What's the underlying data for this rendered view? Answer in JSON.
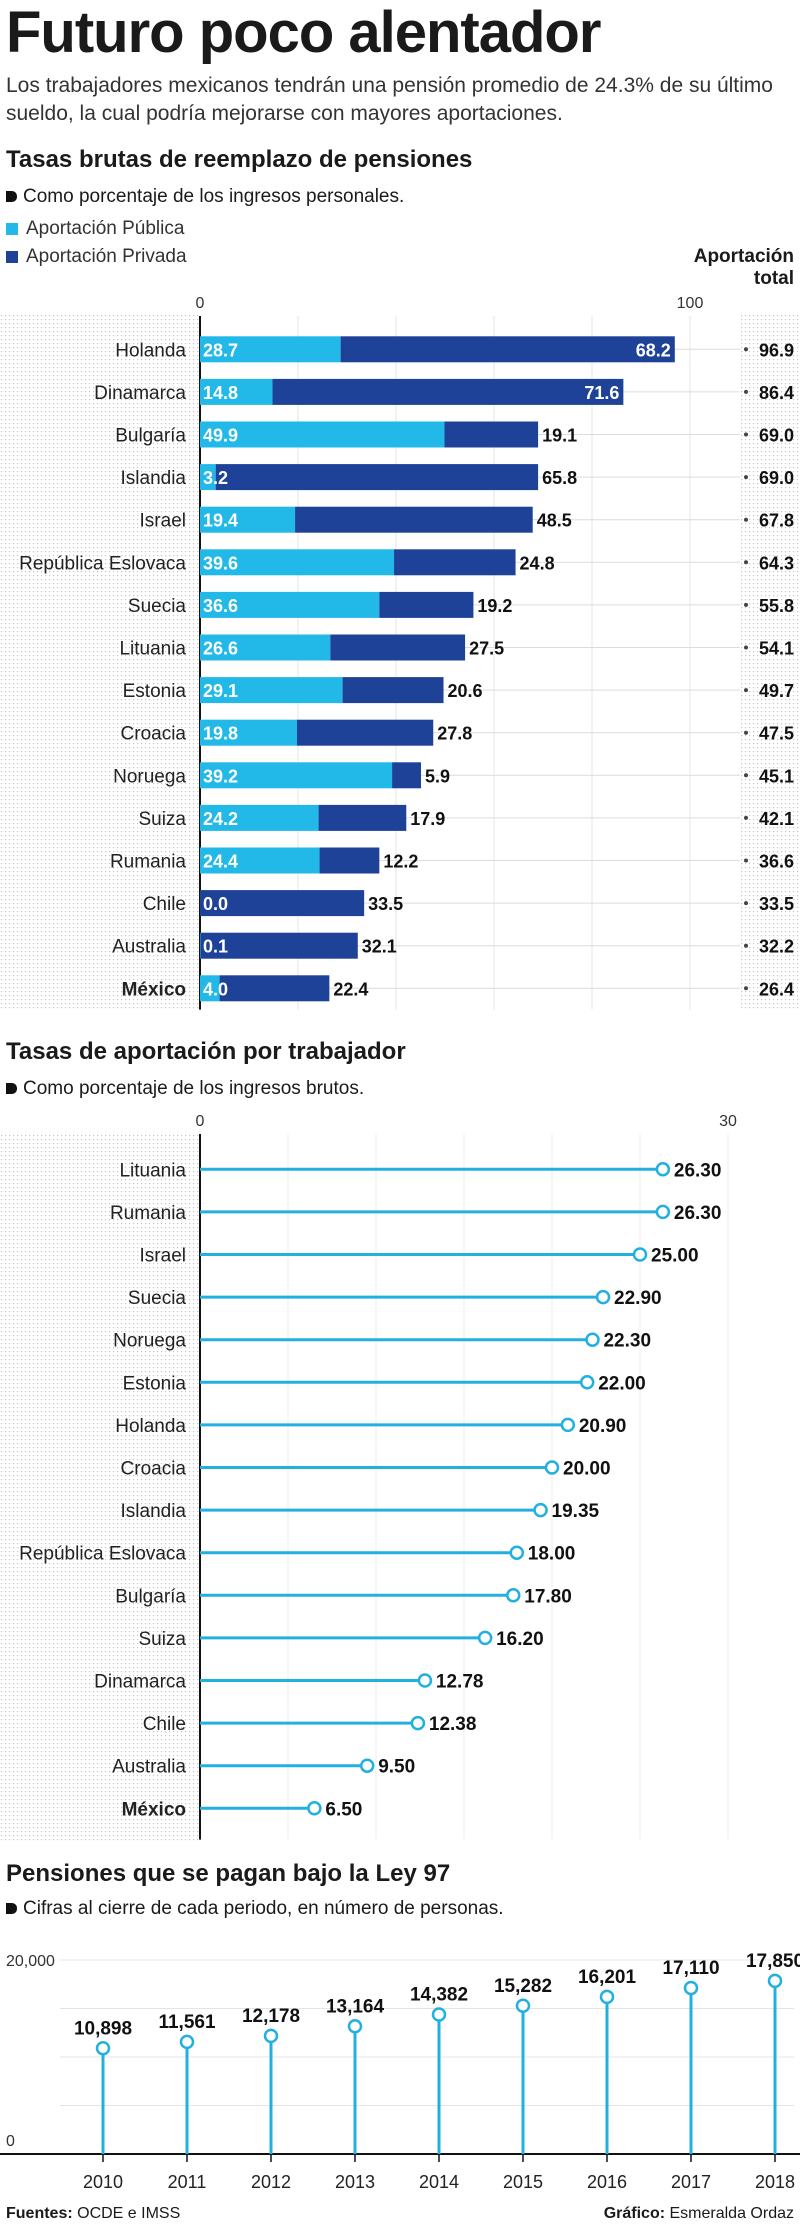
{
  "title": "Futuro poco alentador",
  "subtitle": "Los trabajadores mexicanos tendrán una pensión promedio de 24.3% de su último sueldo, la cual podría mejorarse con mayores aportaciones.",
  "chart1": {
    "heading": "Tasas brutas de reemplazo de pensiones",
    "note": "Como porcentaje de los ingresos personales.",
    "legend_public": "Aportación Pública",
    "legend_private": "Aportación Privada",
    "total_head_1": "Aportación",
    "total_head_2": "total"
  },
  "chart2": {
    "heading": "Tasas de aportación por trabajador",
    "note": "Como porcentaje de los ingresos brutos."
  },
  "chart3": {
    "heading": "Pensiones que se pagan bajo la Ley 97",
    "note": "Cifras al cierre de cada periodo, en número de personas."
  },
  "footer": {
    "sources_label": "Fuentes:",
    "sources": "OCDE e IMSS",
    "graphic_label": "Gráfico:",
    "graphic": "Esmeralda Ordaz"
  },
  "colors": {
    "public": "#22b8e8",
    "private": "#1f4299",
    "lollipop": "#22b0e0"
  },
  "chart_data": [
    {
      "type": "bar",
      "title": "Tasas brutas de reemplazo de pensiones",
      "categories": [
        "Holanda",
        "Dinamarca",
        "Bulgaría",
        "Islandia",
        "Israel",
        "República Eslovaca",
        "Suecia",
        "Lituania",
        "Estonia",
        "Croacia",
        "Noruega",
        "Suiza",
        "Rumania",
        "Chile",
        "Australia",
        "México"
      ],
      "series": [
        {
          "name": "Aportación Pública",
          "values": [
            28.7,
            14.8,
            49.9,
            3.2,
            19.4,
            39.6,
            36.6,
            26.6,
            29.1,
            19.8,
            39.2,
            24.2,
            24.4,
            0.0,
            0.1,
            4.0
          ]
        },
        {
          "name": "Aportación Privada",
          "values": [
            68.2,
            71.6,
            19.1,
            65.8,
            48.5,
            24.8,
            19.2,
            27.5,
            20.6,
            27.8,
            5.9,
            17.9,
            12.2,
            33.5,
            32.1,
            22.4
          ]
        }
      ],
      "totals": [
        "96.9",
        "86.4",
        "69.0",
        "69.0",
        "67.8",
        "64.3",
        "55.8",
        "54.1",
        "49.7",
        "47.5",
        "45.1",
        "42.1",
        "36.6",
        "33.5",
        "32.2",
        "26.4"
      ],
      "stacked": true,
      "orientation": "horizontal",
      "xlim": [
        0,
        100
      ],
      "xticks": [
        "0",
        "100"
      ]
    },
    {
      "type": "scatter",
      "title": "Tasas de aportación por trabajador",
      "categories": [
        "Lituania",
        "Rumania",
        "Israel",
        "Suecia",
        "Noruega",
        "Estonia",
        "Holanda",
        "Croacia",
        "Islandia",
        "República Eslovaca",
        "Bulgaría",
        "Suiza",
        "Dinamarca",
        "Chile",
        "Australia",
        "México"
      ],
      "values": [
        26.3,
        26.3,
        25.0,
        22.9,
        22.3,
        22.0,
        20.9,
        20.0,
        19.35,
        18.0,
        17.8,
        16.2,
        12.78,
        12.38,
        9.5,
        6.5
      ],
      "value_labels": [
        "26.30",
        "26.30",
        "25.00",
        "22.90",
        "22.30",
        "22.00",
        "20.90",
        "20.00",
        "19.35",
        "18.00",
        "17.80",
        "16.20",
        "12.78",
        "12.38",
        "9.50",
        "6.50"
      ],
      "orientation": "horizontal",
      "xlim": [
        0,
        30
      ],
      "xticks": [
        "0",
        "30"
      ]
    },
    {
      "type": "bar",
      "title": "Pensiones que se pagan bajo la Ley 97",
      "categories": [
        "2010",
        "2011",
        "2012",
        "2013",
        "2014",
        "2015",
        "2016",
        "2017",
        "2018"
      ],
      "values": [
        10898,
        11561,
        12178,
        13164,
        14382,
        15282,
        16201,
        17110,
        17850
      ],
      "value_labels": [
        "10,898",
        "11,561",
        "12,178",
        "13,164",
        "14,382",
        "15,282",
        "16,201",
        "17,110",
        "17,850"
      ],
      "ylim": [
        0,
        20000
      ],
      "yticks": [
        "0",
        "20,000"
      ]
    }
  ]
}
